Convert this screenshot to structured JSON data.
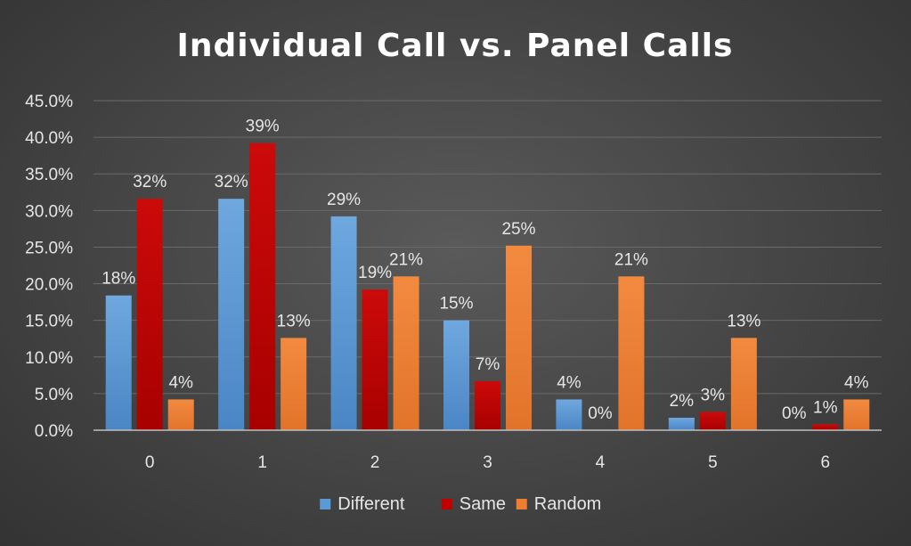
{
  "chart_data": {
    "type": "bar",
    "title": "Individual Call vs. Panel Calls",
    "xlabel": "",
    "ylabel": "",
    "categories": [
      "0",
      "1",
      "2",
      "3",
      "4",
      "5",
      "6"
    ],
    "ylim": [
      0,
      45
    ],
    "yticks": [
      "0.0%",
      "5.0%",
      "10.0%",
      "15.0%",
      "20.0%",
      "25.0%",
      "30.0%",
      "35.0%",
      "40.0%",
      "45.0%"
    ],
    "grid": true,
    "legend_position": "bottom",
    "series": [
      {
        "name": "Different",
        "color": "#5b9bd5",
        "values": [
          18.4,
          31.6,
          29.2,
          15.0,
          4.2,
          1.7,
          0.0
        ],
        "labels": [
          "18%",
          "32%",
          "29%",
          "15%",
          "4%",
          "2%",
          "0%"
        ]
      },
      {
        "name": "Same",
        "color": "#c00000",
        "values": [
          31.6,
          39.2,
          19.2,
          6.7,
          0.0,
          2.5,
          0.8
        ],
        "labels": [
          "32%",
          "39%",
          "19%",
          "7%",
          "0%",
          "3%",
          "1%"
        ]
      },
      {
        "name": "Random",
        "color": "#ed7d31",
        "values": [
          4.2,
          12.6,
          21.0,
          25.2,
          21.0,
          12.6,
          4.2
        ],
        "labels": [
          "4%",
          "13%",
          "21%",
          "25%",
          "21%",
          "13%",
          "4%"
        ]
      }
    ]
  }
}
